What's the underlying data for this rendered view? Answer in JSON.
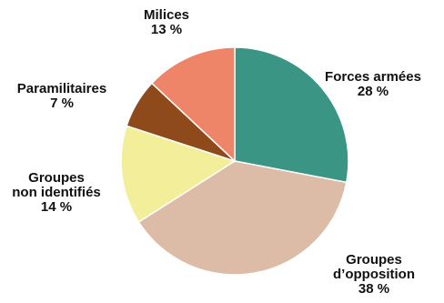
{
  "chart_data": {
    "type": "pie",
    "title": "",
    "start_angle_deg": 0,
    "direction": "clockwise",
    "slices": [
      {
        "label_lines": [
          "Forces armées",
          "28 %"
        ],
        "value": 28,
        "color": "#3a9584"
      },
      {
        "label_lines": [
          "Groupes",
          "d’opposition",
          "38 %"
        ],
        "value": 38,
        "color": "#dcbca6"
      },
      {
        "label_lines": [
          "Groupes",
          "non identifiés",
          "14 %"
        ],
        "value": 14,
        "color": "#f2ee9a"
      },
      {
        "label_lines": [
          "Paramilitaires",
          "7 %"
        ],
        "value": 7,
        "color": "#8f4a1c"
      },
      {
        "label_lines": [
          "Milices",
          "13 %"
        ],
        "value": 13,
        "color": "#ee8468"
      }
    ]
  }
}
